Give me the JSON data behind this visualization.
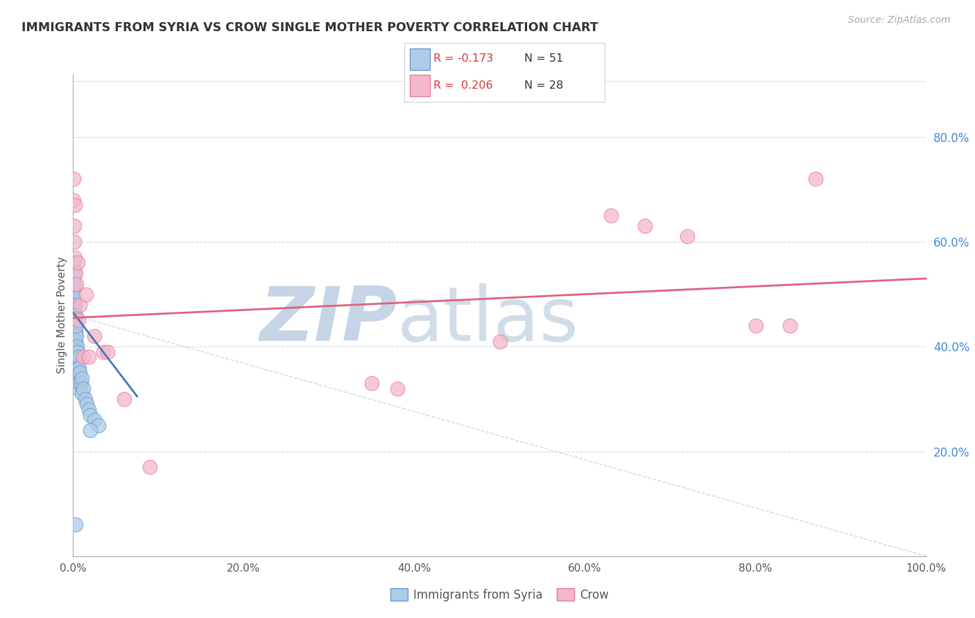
{
  "title": "IMMIGRANTS FROM SYRIA VS CROW SINGLE MOTHER POVERTY CORRELATION CHART",
  "source": "Source: ZipAtlas.com",
  "ylabel": "Single Mother Poverty",
  "legend_label_1": "Immigrants from Syria",
  "legend_label_2": "Crow",
  "r1": -0.173,
  "n1": 51,
  "r2": 0.206,
  "n2": 28,
  "color_blue_fill": "#aecce8",
  "color_blue_edge": "#6699cc",
  "color_pink_fill": "#f5b8cb",
  "color_pink_edge": "#e87898",
  "color_blue_line": "#4477bb",
  "color_pink_line": "#e06080",
  "color_diag": "#b8c8d8",
  "color_grid": "#c8d4e0",
  "color_right_ticks": "#4488dd",
  "watermark_zip_color": "#c5d5e5",
  "watermark_atlas_color": "#d0dde8",
  "background_color": "#ffffff",
  "title_color": "#333333",
  "source_color": "#aaaaaa",
  "xlim": [
    0.0,
    1.0
  ],
  "ylim": [
    0.0,
    0.92
  ],
  "yticks": [
    0.2,
    0.4,
    0.6,
    0.8
  ],
  "xticks": [
    0.0,
    0.2,
    0.4,
    0.6,
    0.8,
    1.0
  ],
  "blue_points": [
    [
      0.0002,
      0.56
    ],
    [
      0.0004,
      0.55
    ],
    [
      0.0006,
      0.53
    ],
    [
      0.0008,
      0.52
    ],
    [
      0.001,
      0.54
    ],
    [
      0.001,
      0.51
    ],
    [
      0.001,
      0.49
    ],
    [
      0.001,
      0.48
    ],
    [
      0.0012,
      0.5
    ],
    [
      0.0014,
      0.47
    ],
    [
      0.0015,
      0.46
    ],
    [
      0.0016,
      0.52
    ],
    [
      0.0018,
      0.44
    ],
    [
      0.002,
      0.48
    ],
    [
      0.002,
      0.46
    ],
    [
      0.002,
      0.43
    ],
    [
      0.002,
      0.41
    ],
    [
      0.0022,
      0.42
    ],
    [
      0.0024,
      0.44
    ],
    [
      0.0025,
      0.4
    ],
    [
      0.003,
      0.46
    ],
    [
      0.003,
      0.43
    ],
    [
      0.003,
      0.41
    ],
    [
      0.003,
      0.39
    ],
    [
      0.0032,
      0.37
    ],
    [
      0.0035,
      0.42
    ],
    [
      0.004,
      0.44
    ],
    [
      0.004,
      0.38
    ],
    [
      0.004,
      0.36
    ],
    [
      0.0045,
      0.4
    ],
    [
      0.005,
      0.39
    ],
    [
      0.005,
      0.36
    ],
    [
      0.005,
      0.34
    ],
    [
      0.006,
      0.38
    ],
    [
      0.006,
      0.35
    ],
    [
      0.006,
      0.32
    ],
    [
      0.007,
      0.36
    ],
    [
      0.007,
      0.33
    ],
    [
      0.008,
      0.35
    ],
    [
      0.009,
      0.33
    ],
    [
      0.01,
      0.34
    ],
    [
      0.01,
      0.31
    ],
    [
      0.012,
      0.32
    ],
    [
      0.014,
      0.3
    ],
    [
      0.016,
      0.29
    ],
    [
      0.018,
      0.28
    ],
    [
      0.02,
      0.27
    ],
    [
      0.025,
      0.26
    ],
    [
      0.03,
      0.25
    ],
    [
      0.02,
      0.24
    ],
    [
      0.003,
      0.06
    ]
  ],
  "pink_points": [
    [
      0.0005,
      0.68
    ],
    [
      0.0008,
      0.72
    ],
    [
      0.001,
      0.63
    ],
    [
      0.0012,
      0.6
    ],
    [
      0.002,
      0.57
    ],
    [
      0.002,
      0.67
    ],
    [
      0.003,
      0.54
    ],
    [
      0.004,
      0.52
    ],
    [
      0.005,
      0.56
    ],
    [
      0.006,
      0.45
    ],
    [
      0.008,
      0.48
    ],
    [
      0.012,
      0.38
    ],
    [
      0.015,
      0.5
    ],
    [
      0.018,
      0.38
    ],
    [
      0.025,
      0.42
    ],
    [
      0.035,
      0.39
    ],
    [
      0.04,
      0.39
    ],
    [
      0.06,
      0.3
    ],
    [
      0.09,
      0.17
    ],
    [
      0.35,
      0.33
    ],
    [
      0.38,
      0.32
    ],
    [
      0.5,
      0.41
    ],
    [
      0.63,
      0.65
    ],
    [
      0.67,
      0.63
    ],
    [
      0.72,
      0.61
    ],
    [
      0.8,
      0.44
    ],
    [
      0.84,
      0.44
    ],
    [
      0.87,
      0.72
    ]
  ],
  "pink_line_x": [
    0.0,
    1.0
  ],
  "pink_line_y": [
    0.455,
    0.53
  ],
  "blue_line_x": [
    0.0,
    0.075
  ],
  "blue_line_y": [
    0.465,
    0.305
  ],
  "diag_line_x": [
    0.0,
    1.0
  ],
  "diag_line_y": [
    0.46,
    0.0
  ]
}
